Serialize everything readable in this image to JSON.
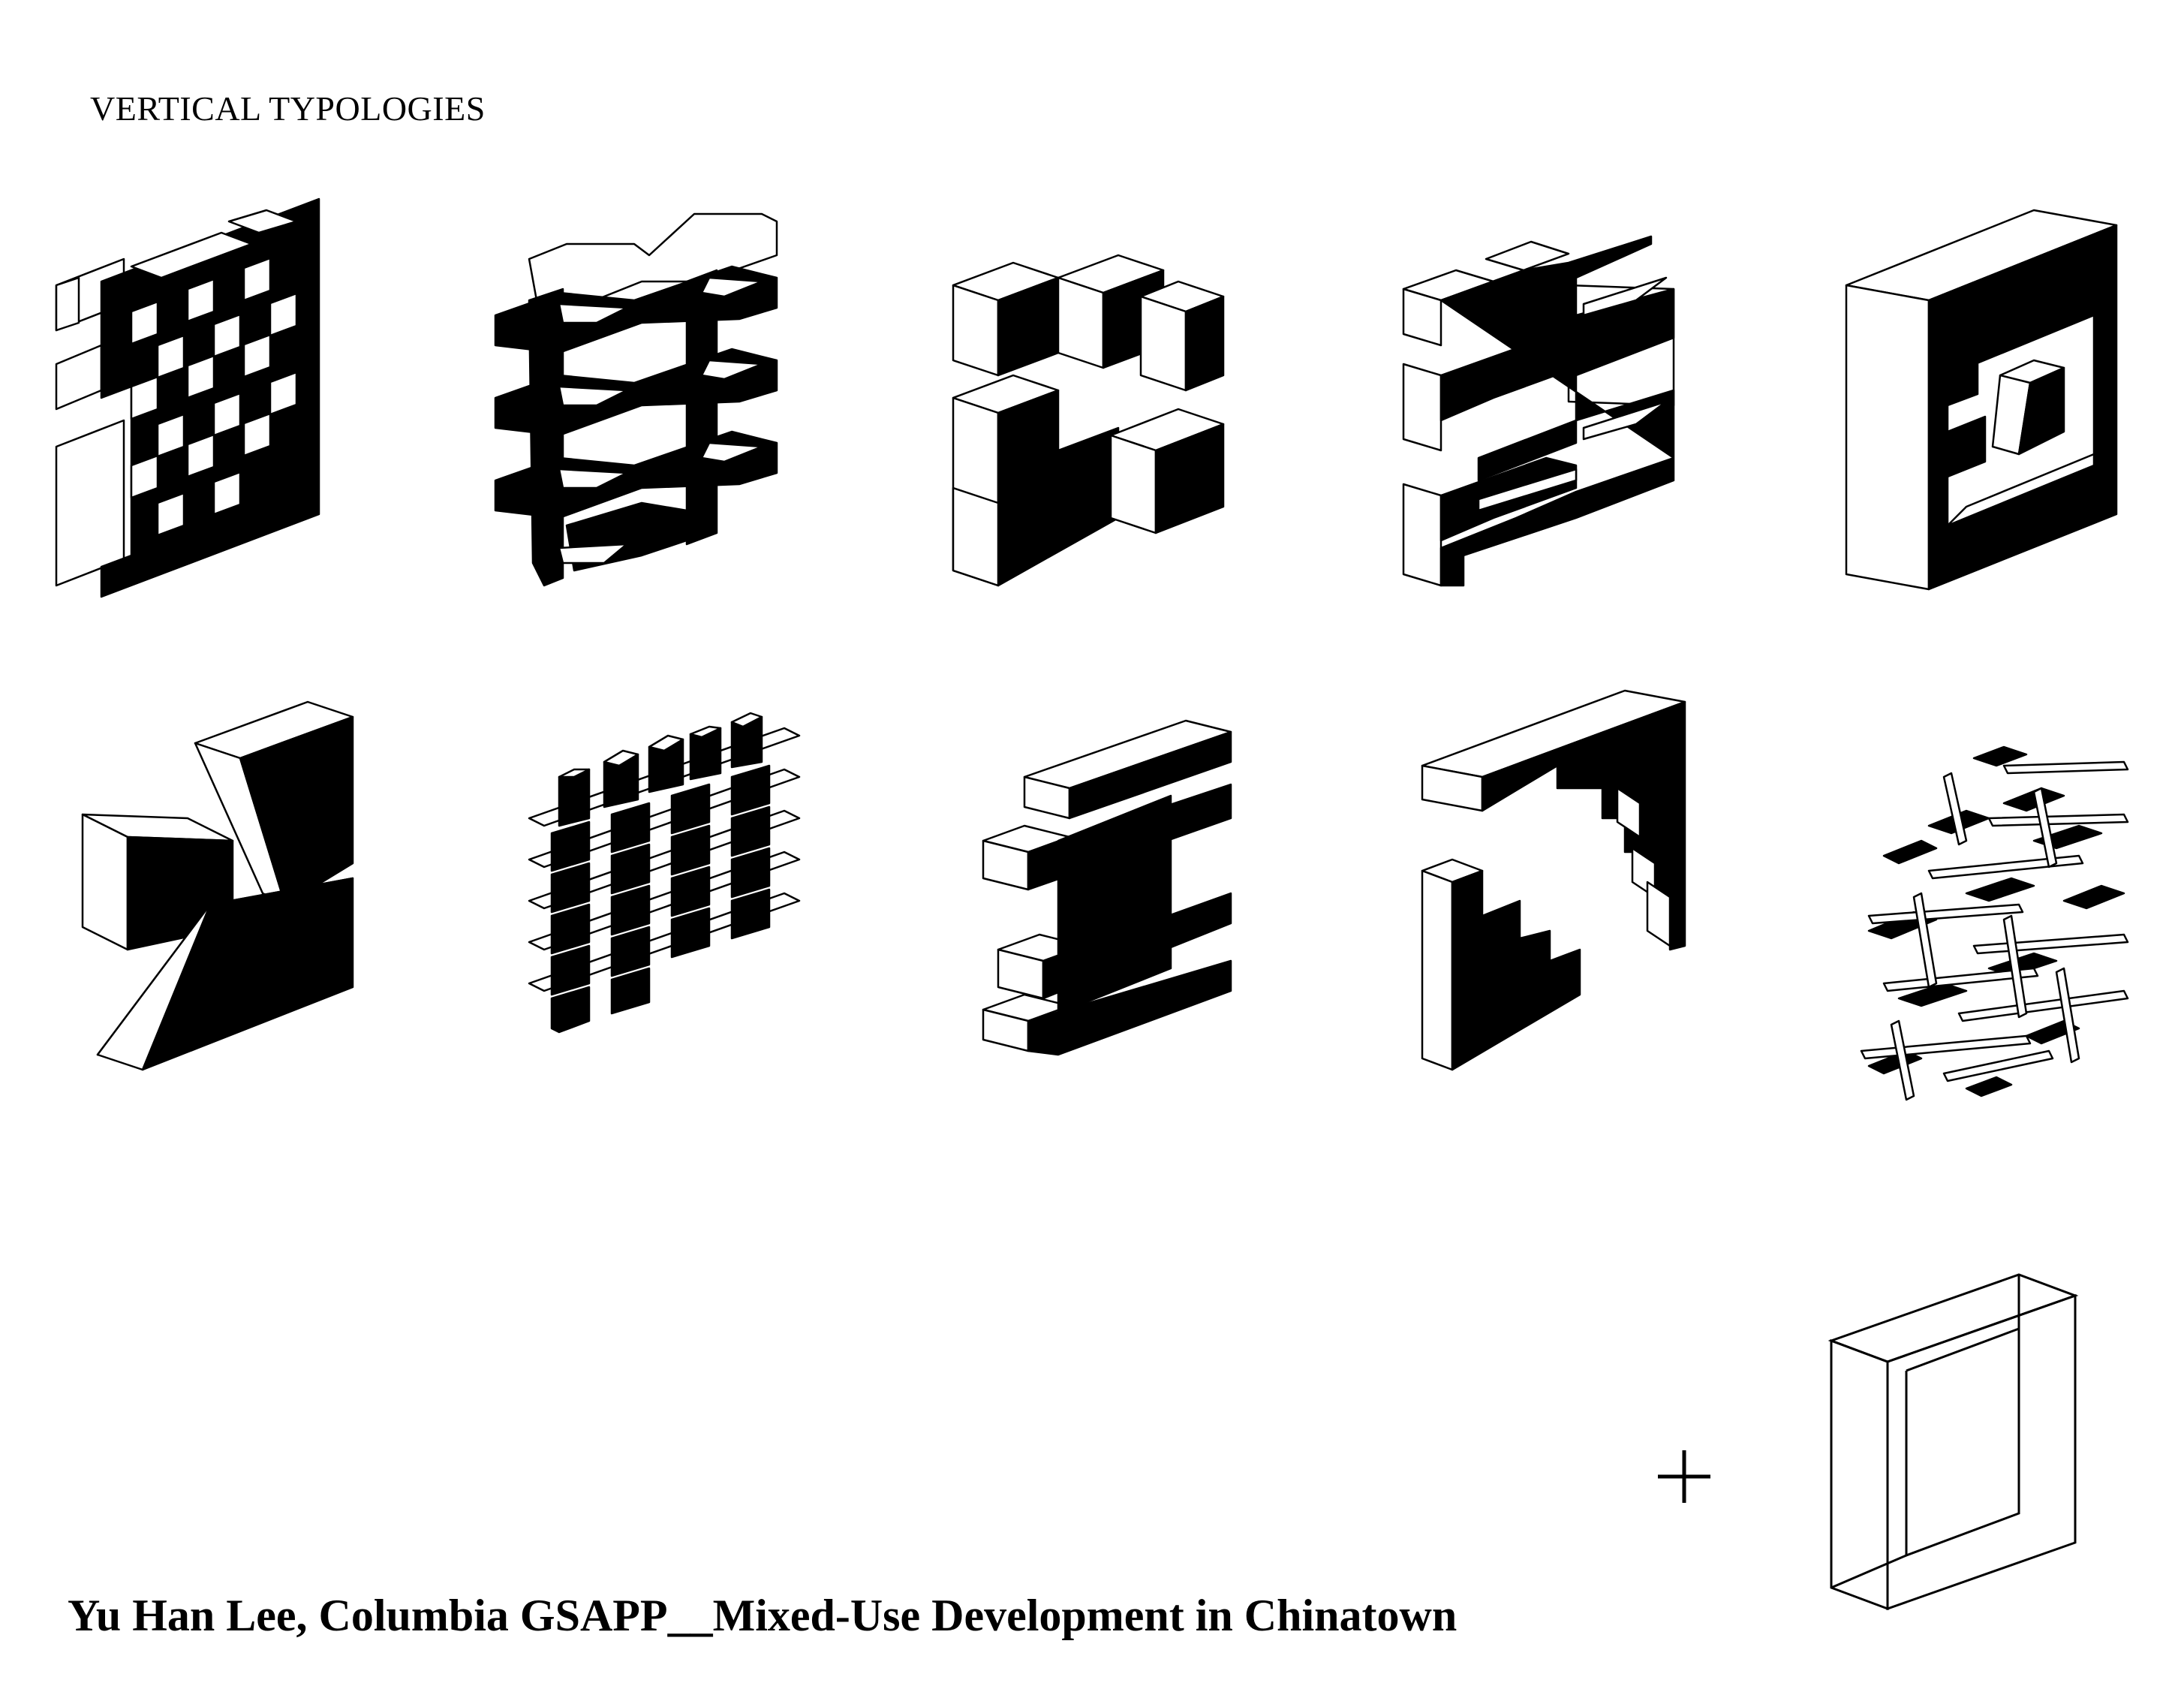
{
  "sheet": {
    "heading": "VERTICAL TYPOLOGIES",
    "caption": "Yu Han Lee, Columbia GSAPP__Mixed-Use Development in Chinatown",
    "plus_sign": "+"
  },
  "typologies": [
    {
      "row": 1,
      "col": 1,
      "icon": "checkerboard-stacked-boxes"
    },
    {
      "row": 1,
      "col": 2,
      "icon": "interlocking-slab-bands"
    },
    {
      "row": 1,
      "col": 3,
      "icon": "clustered-cubes"
    },
    {
      "row": 1,
      "col": 4,
      "icon": "bridged-box-stack"
    },
    {
      "row": 1,
      "col": 5,
      "icon": "hollow-frame-with-inner-box"
    },
    {
      "row": 2,
      "col": 1,
      "icon": "three-splayed-volumes"
    },
    {
      "row": 2,
      "col": 2,
      "icon": "plates-with-pods"
    },
    {
      "row": 2,
      "col": 3,
      "icon": "zigzag-bars"
    },
    {
      "row": 2,
      "col": 4,
      "icon": "stepped-l-volumes"
    },
    {
      "row": 2,
      "col": 5,
      "icon": "scattered-ramps"
    }
  ],
  "frame_icon": "open-rectangular-frame"
}
